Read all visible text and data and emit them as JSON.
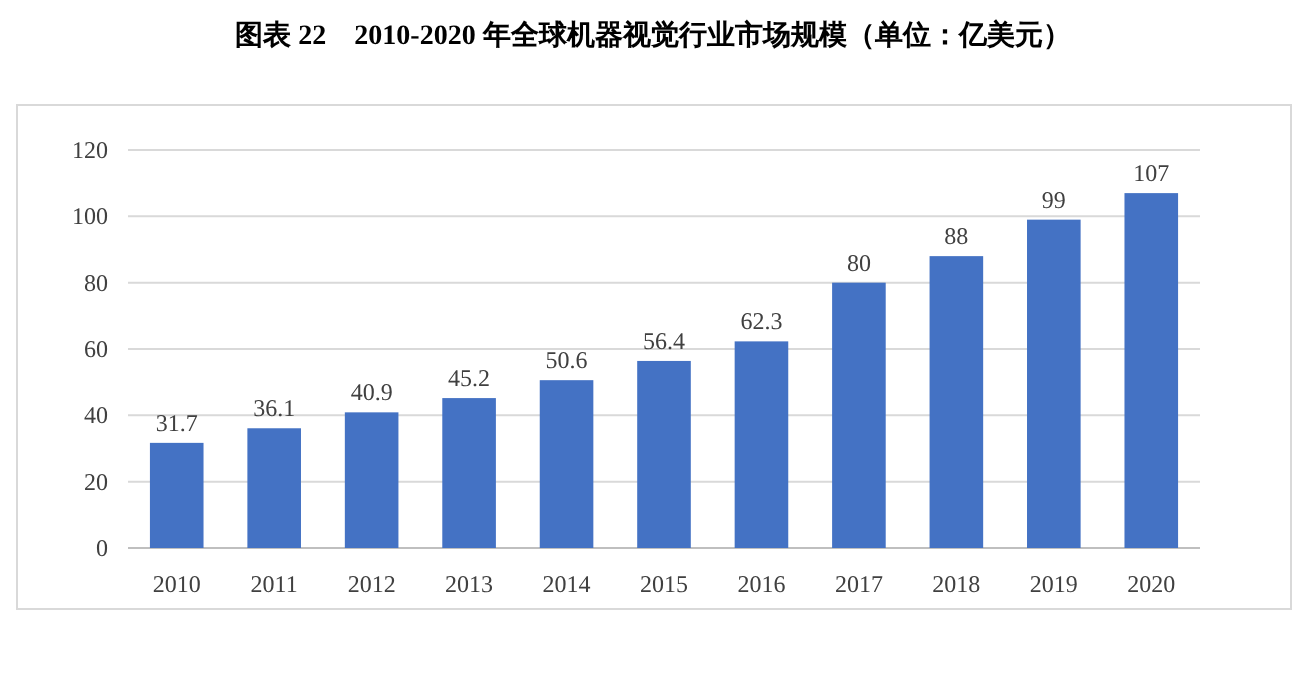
{
  "chart_data": {
    "type": "bar",
    "title": "图表 22　2010-2020 年全球机器视觉行业市场规模（单位：亿美元）",
    "categories": [
      "2010",
      "2011",
      "2012",
      "2013",
      "2014",
      "2015",
      "2016",
      "2017",
      "2018",
      "2019",
      "2020"
    ],
    "values": [
      31.7,
      36.1,
      40.9,
      45.2,
      50.6,
      56.4,
      62.3,
      80,
      88,
      99,
      107
    ],
    "color": "#4472c4",
    "ylim": [
      0,
      120
    ],
    "yticks": [
      0,
      20,
      40,
      60,
      80,
      100,
      120
    ],
    "grid": "y",
    "data_labels": true
  }
}
